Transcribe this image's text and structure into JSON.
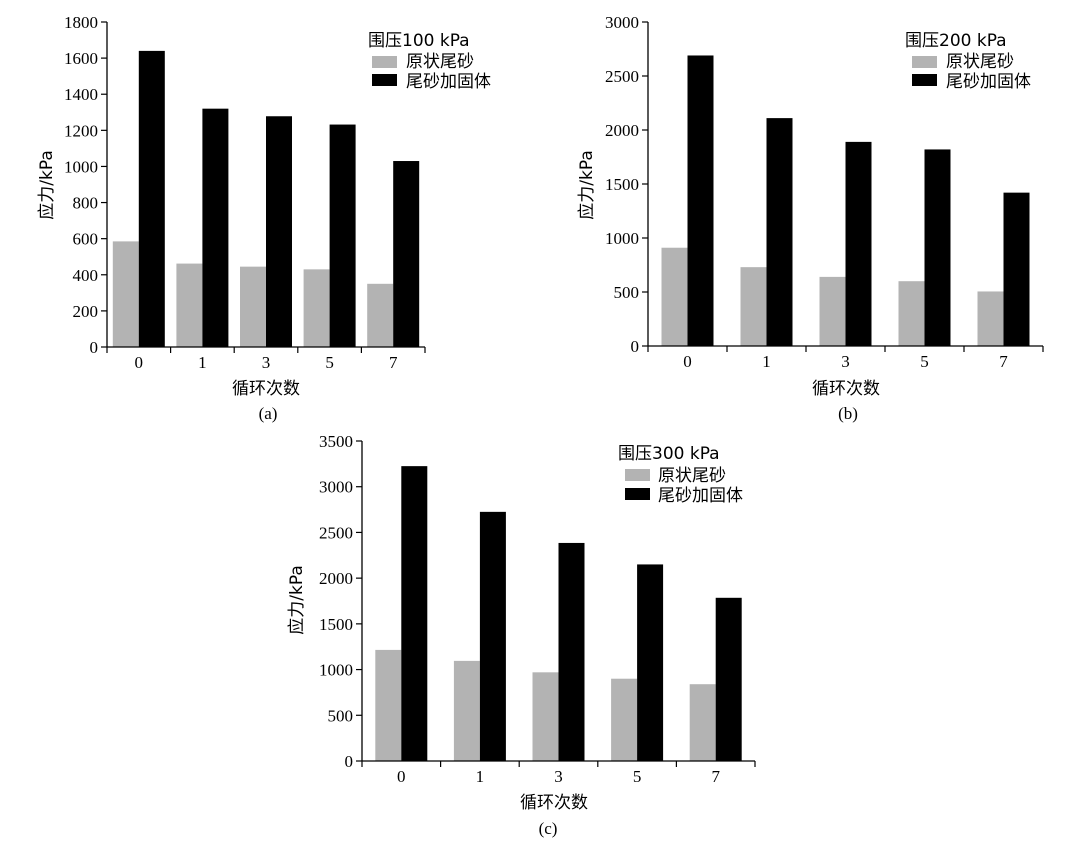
{
  "chart_data": [
    {
      "type": "bar",
      "caption": "(a)",
      "legend_title": "围压100 kPa",
      "xlabel": "循环次数",
      "ylabel": "应力/kPa",
      "categories": [
        "0",
        "1",
        "3",
        "5",
        "7"
      ],
      "ylim": [
        0,
        1800
      ],
      "yticks": [
        "0",
        "200",
        "400",
        "600",
        "800",
        "1000",
        "1200",
        "1400",
        "1600",
        "1800"
      ],
      "series": [
        {
          "name": "原状尾砂",
          "color": "#b3b3b3",
          "values": [
            585,
            462,
            445,
            430,
            350
          ]
        },
        {
          "name": "尾砂加固体",
          "color": "#000000",
          "values": [
            1640,
            1320,
            1278,
            1232,
            1030
          ]
        }
      ]
    },
    {
      "type": "bar",
      "caption": "(b)",
      "legend_title": "围压200 kPa",
      "xlabel": "循环次数",
      "ylabel": "应力/kPa",
      "categories": [
        "0",
        "1",
        "3",
        "5",
        "7"
      ],
      "ylim": [
        0,
        3000
      ],
      "yticks": [
        "0",
        "500",
        "1000",
        "1500",
        "2000",
        "2500",
        "3000"
      ],
      "series": [
        {
          "name": "原状尾砂",
          "color": "#b3b3b3",
          "values": [
            910,
            730,
            640,
            600,
            505
          ]
        },
        {
          "name": "尾砂加固体",
          "color": "#000000",
          "values": [
            2690,
            2110,
            1890,
            1820,
            1420
          ]
        }
      ]
    },
    {
      "type": "bar",
      "caption": "(c)",
      "legend_title": "围压300 kPa",
      "xlabel": "循环次数",
      "ylabel": "应力/kPa",
      "categories": [
        "0",
        "1",
        "3",
        "5",
        "7"
      ],
      "ylim": [
        0,
        3500
      ],
      "yticks": [
        "0",
        "500",
        "1000",
        "1500",
        "2000",
        "2500",
        "3000",
        "3500"
      ],
      "series": [
        {
          "name": "原状尾砂",
          "color": "#b3b3b3",
          "values": [
            1215,
            1095,
            970,
            900,
            840
          ]
        },
        {
          "name": "尾砂加固体",
          "color": "#000000",
          "values": [
            3225,
            2725,
            2385,
            2150,
            1785
          ]
        }
      ]
    }
  ]
}
